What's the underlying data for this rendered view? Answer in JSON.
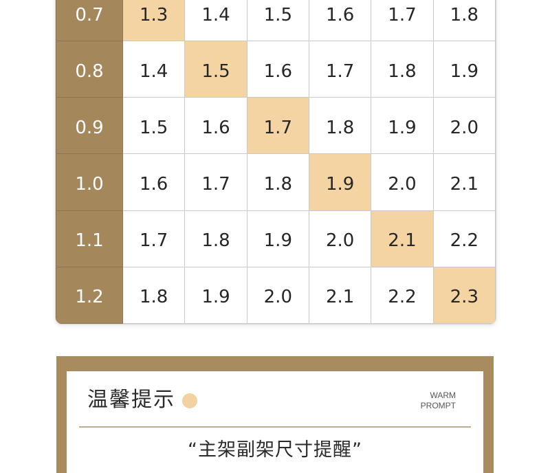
{
  "size_table": {
    "rows": [
      {
        "label": "0.7",
        "cells": [
          "1.3",
          "1.4",
          "1.5",
          "1.6",
          "1.7",
          "1.8"
        ],
        "highlight": 0
      },
      {
        "label": "0.8",
        "cells": [
          "1.4",
          "1.5",
          "1.6",
          "1.7",
          "1.8",
          "1.9"
        ],
        "highlight": 1
      },
      {
        "label": "0.9",
        "cells": [
          "1.5",
          "1.6",
          "1.7",
          "1.8",
          "1.9",
          "2.0"
        ],
        "highlight": 2
      },
      {
        "label": "1.0",
        "cells": [
          "1.6",
          "1.7",
          "1.8",
          "1.9",
          "2.0",
          "2.1"
        ],
        "highlight": 3
      },
      {
        "label": "1.1",
        "cells": [
          "1.7",
          "1.8",
          "1.9",
          "2.0",
          "2.1",
          "2.2"
        ],
        "highlight": 4
      },
      {
        "label": "1.2",
        "cells": [
          "1.8",
          "1.9",
          "2.0",
          "2.1",
          "2.2",
          "2.3"
        ],
        "highlight": 5
      }
    ],
    "colors": {
      "row_header_bg": "#a5875c",
      "highlight_bg": "#f5d4a4",
      "grid_line": "#c9c9c9"
    }
  },
  "warm_prompt": {
    "title": "温馨提示",
    "english_line1": "WARM",
    "english_line2": "PROMPT",
    "subtitle": "“主架副架尺寸提醒”",
    "colors": {
      "frame": "#a98b60",
      "accent_dot": "#f3d2a2"
    }
  }
}
